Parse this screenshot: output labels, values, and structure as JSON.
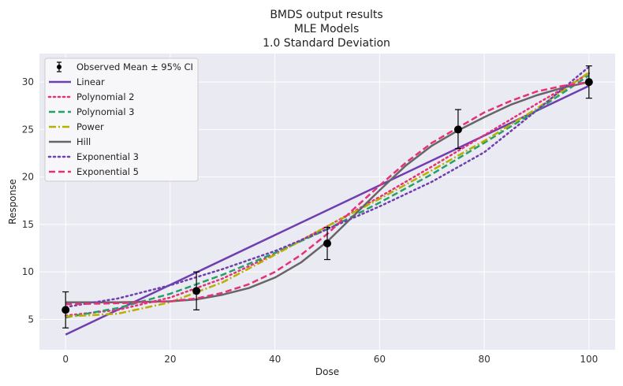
{
  "chart_data": {
    "type": "line",
    "title": [
      "BMDS output results",
      "MLE Models",
      "1.0 Standard Deviation"
    ],
    "xlabel": "Dose",
    "ylabel": "Response",
    "xlim": [
      -5,
      105
    ],
    "ylim": [
      1.8,
      33
    ],
    "xticks": [
      0,
      20,
      40,
      60,
      80,
      100
    ],
    "yticks": [
      5,
      10,
      15,
      20,
      25,
      30
    ],
    "grid": true,
    "legend_position": "top-left",
    "observed": {
      "name": "Observed Mean ± 95% CI",
      "color": "#000000",
      "points": [
        {
          "x": 0,
          "y": 6,
          "lo": 4.1,
          "hi": 7.9
        },
        {
          "x": 25,
          "y": 8,
          "lo": 6.0,
          "hi": 10.0
        },
        {
          "x": 50,
          "y": 13,
          "lo": 11.3,
          "hi": 14.7
        },
        {
          "x": 75,
          "y": 25,
          "lo": 23.0,
          "hi": 27.1
        },
        {
          "x": 100,
          "y": 30,
          "lo": 28.3,
          "hi": 31.7
        }
      ]
    },
    "series": [
      {
        "name": "Linear",
        "color": "#6f3fb0",
        "dash": "solid",
        "x": [
          0,
          100
        ],
        "y": [
          3.4,
          29.6
        ]
      },
      {
        "name": "Polynomial 2",
        "color": "#e6307a",
        "dash": "dotted",
        "x": [
          0,
          10,
          20,
          30,
          40,
          50,
          60,
          70,
          80,
          90,
          100
        ],
        "y": [
          5.4,
          6.0,
          7.3,
          9.3,
          11.9,
          14.8,
          17.9,
          21.1,
          24.4,
          27.7,
          30.9
        ]
      },
      {
        "name": "Polynomial 3",
        "color": "#26a06a",
        "dash": "dashed",
        "x": [
          0,
          10,
          20,
          30,
          40,
          50,
          60,
          70,
          80,
          90,
          100
        ],
        "y": [
          5.2,
          6.2,
          7.7,
          9.7,
          12.0,
          14.5,
          17.3,
          20.3,
          23.6,
          27.0,
          30.7
        ]
      },
      {
        "name": "Power",
        "color": "#b8b000",
        "dash": "dashdot",
        "x": [
          0,
          10,
          20,
          30,
          40,
          50,
          60,
          70,
          80,
          90,
          100
        ],
        "y": [
          5.3,
          5.6,
          6.8,
          8.9,
          11.8,
          14.8,
          17.7,
          20.7,
          23.8,
          27.2,
          31.0
        ]
      },
      {
        "name": "Hill",
        "color": "#666666",
        "dash": "solid",
        "x": [
          0,
          10,
          20,
          25,
          30,
          35,
          40,
          45,
          50,
          55,
          60,
          65,
          70,
          75,
          80,
          85,
          90,
          95,
          100
        ],
        "y": [
          6.8,
          6.8,
          6.9,
          7.1,
          7.6,
          8.3,
          9.4,
          11.0,
          13.2,
          15.9,
          18.6,
          21.2,
          23.3,
          24.9,
          26.3,
          27.6,
          28.6,
          29.4,
          30.0
        ]
      },
      {
        "name": "Exponential 3",
        "color": "#6f3fb0",
        "dash": "dotted",
        "x": [
          0,
          10,
          20,
          30,
          40,
          50,
          60,
          70,
          80,
          90,
          100
        ],
        "y": [
          6.3,
          7.2,
          8.6,
          10.3,
          12.2,
          14.5,
          16.9,
          19.5,
          22.6,
          27.0,
          31.6
        ]
      },
      {
        "name": "Exponential 5",
        "color": "#e6307a",
        "dash": "dashed",
        "x": [
          0,
          10,
          20,
          25,
          30,
          35,
          40,
          45,
          50,
          55,
          60,
          65,
          70,
          75,
          80,
          85,
          90,
          95,
          100
        ],
        "y": [
          6.6,
          6.7,
          6.9,
          7.2,
          7.8,
          8.7,
          10.0,
          11.8,
          14.0,
          16.6,
          19.1,
          21.5,
          23.6,
          25.2,
          26.8,
          28.0,
          29.0,
          29.6,
          30.0
        ]
      }
    ]
  }
}
